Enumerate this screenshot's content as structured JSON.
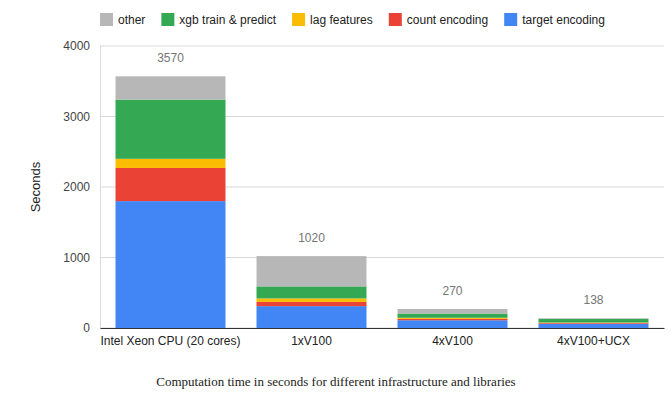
{
  "chart_data": {
    "type": "bar",
    "stacked": true,
    "grid": true,
    "legend": "top",
    "title": "Computation time in seconds for different infrastructure and libraries",
    "y_label": "Seconds",
    "categories": [
      "Intel Xeon CPU (20 cores)",
      "1xV100",
      "4xV100",
      "4xV100+UCX"
    ],
    "series": [
      {
        "name": "target encoding",
        "color": "#4285f4",
        "values": [
          1800,
          310,
          110,
          60
        ]
      },
      {
        "name": "count encoding",
        "color": "#ea4335",
        "values": [
          470,
          60,
          20,
          10
        ]
      },
      {
        "name": "lag features",
        "color": "#fbbc04",
        "values": [
          130,
          50,
          15,
          8
        ]
      },
      {
        "name": "xgb train & predict",
        "color": "#34a853",
        "values": [
          840,
          170,
          60,
          50
        ]
      },
      {
        "name": "other",
        "color": "#b7b7b7",
        "values": [
          330,
          430,
          65,
          10
        ]
      }
    ],
    "totals": [
      3570,
      1020,
      270,
      138
    ],
    "ylim": [
      0,
      4000
    ],
    "yticks": [
      0,
      1000,
      2000,
      3000,
      4000
    ]
  }
}
